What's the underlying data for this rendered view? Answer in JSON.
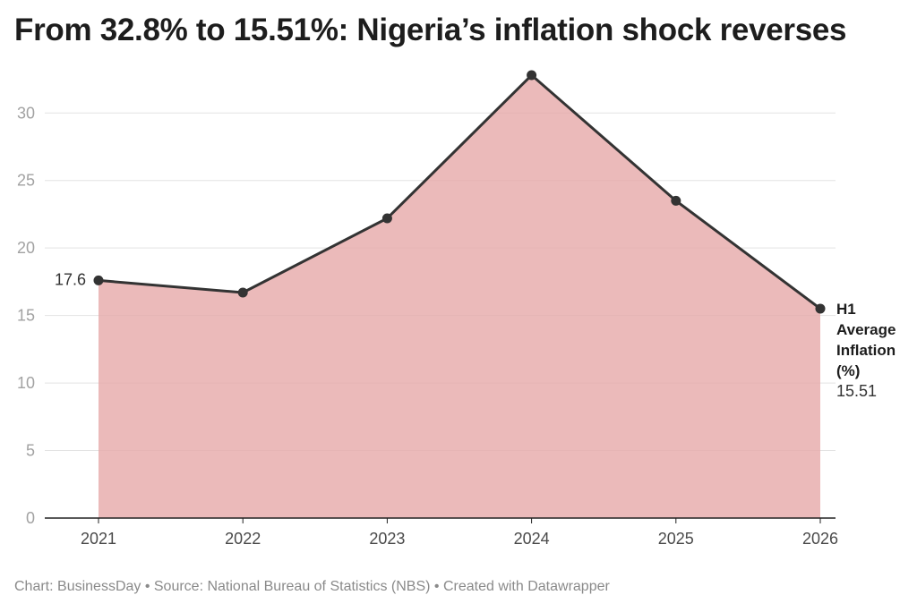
{
  "chart_data": {
    "type": "area",
    "title": "From 32.8% to 15.51%: Nigeria’s inflation shock reverses",
    "categories": [
      "2021",
      "2022",
      "2023",
      "2024",
      "2025",
      "2026"
    ],
    "series": [
      {
        "name": "H1 Average Inflation (%)",
        "name_lines": [
          "H1",
          "Average",
          "Inflation",
          "(%)"
        ],
        "values": [
          17.6,
          16.7,
          22.2,
          32.8,
          23.5,
          15.51
        ],
        "color": "#e6a9a9",
        "line_color": "#333333"
      }
    ],
    "data_labels": {
      "first": "17.6",
      "last": "15.51"
    },
    "yticks": [
      0,
      5,
      10,
      15,
      20,
      25,
      30
    ],
    "ylim": [
      0,
      33
    ],
    "grid": true,
    "xlabel": "",
    "ylabel": ""
  },
  "footer": {
    "text": "Chart: BusinessDay • Source: National Bureau of Statistics (NBS) • Created with Datawrapper"
  }
}
